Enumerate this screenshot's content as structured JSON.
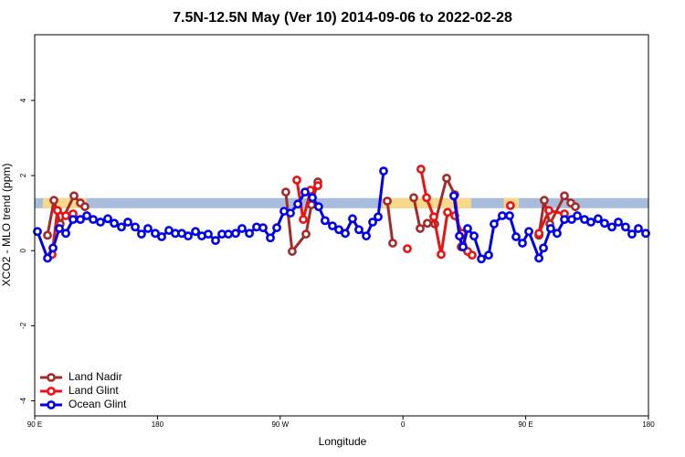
{
  "chart_data": {
    "type": "line",
    "title": "7.5N-12.5N May (Ver 10)   2014-09-06 to 2022-02-28",
    "x_label": "Longitude",
    "y_label": "XCO2 - MLO trend (ppm)",
    "xlim": [
      90,
      540
    ],
    "ylim": [
      -4.4,
      5.75
    ],
    "xticks": [
      {
        "value": 90,
        "label": "90 E"
      },
      {
        "value": 180,
        "label": "180"
      },
      {
        "value": 270,
        "label": "90 W"
      },
      {
        "value": 360,
        "label": "0"
      },
      {
        "value": 450,
        "label": "90 E"
      },
      {
        "value": 540,
        "label": "180"
      }
    ],
    "yticks": [
      -4,
      -2,
      0,
      2,
      4
    ],
    "band": [
      1.13,
      1.4
    ],
    "band_color": "#a7bddb",
    "band_highlights": [
      [
        96,
        128
      ],
      [
        345,
        410
      ],
      [
        434,
        445
      ]
    ],
    "highlight_color": "#f7d98c",
    "legend": "bottom-left",
    "series": [
      {
        "name": "Land Nadir",
        "color": "#a52a2a",
        "x": [
          99.4,
          104.1,
          108.7,
          118.8,
          123.5,
          126.8,
          null,
          274.1,
          278.8,
          288.9,
          292.9,
          297.6,
          null,
          348.5,
          352.5,
          null,
          367.9,
          372.6,
          377.9,
          383.3,
          392.0,
          398.0,
          402.7,
          null,
          459.7,
          463.6,
          467.7,
          478.4,
          483.1,
          486.4
        ],
        "values": [
          0.41,
          1.34,
          0.71,
          1.46,
          1.27,
          1.17,
          null,
          1.56,
          -0.02,
          0.44,
          1.22,
          1.83,
          null,
          1.32,
          0.2,
          null,
          1.41,
          0.59,
          0.73,
          0.71,
          1.93,
          1.49,
          0.1,
          null,
          0.41,
          1.34,
          0.71,
          1.46,
          1.27,
          1.17
        ]
      },
      {
        "name": "Land Glint",
        "color": "#ee1111",
        "x": [
          102.7,
          106.7,
          112.8,
          118.1,
          123.5,
          null,
          282.2,
          286.9,
          292.2,
          297.6,
          null,
          363.2,
          null,
          373.2,
          377.3,
          382.6,
          388.0,
          392.7,
          398.0,
          403.4,
          407.4,
          410.7,
          null,
          438.8,
          null,
          459.7,
          467.0,
          478.4
        ],
        "values": [
          -0.1,
          1.07,
          0.93,
          0.98,
          0.83,
          null,
          1.88,
          0.83,
          1.61,
          1.73,
          null,
          0.05,
          null,
          2.17,
          1.41,
          0.9,
          -0.1,
          1.02,
          0.93,
          0.46,
          -0.02,
          -0.12,
          null,
          1.2,
          null,
          0.46,
          1.07,
          0.98
        ]
      },
      {
        "name": "Ocean Glint",
        "color": "#0000ee",
        "x": [
          92.0,
          99.4,
          103.4,
          108.1,
          112.8,
          118.1,
          123.5,
          128.2,
          132.9,
          138.2,
          143.6,
          148.3,
          153.6,
          158.3,
          163.7,
          168.3,
          173.0,
          178.4,
          183.1,
          188.4,
          193.1,
          197.8,
          202.5,
          207.9,
          212.5,
          217.2,
          222.6,
          227.3,
          232.0,
          237.3,
          242.0,
          247.4,
          252.7,
          257.4,
          262.8,
          267.5,
          272.8,
          277.5,
          282.9,
          288.2,
          293.6,
          298.2,
          302.9,
          308.3,
          313.0,
          317.7,
          323.0,
          327.7,
          333.1,
          337.8,
          341.8,
          345.8,
          null,
          397.3,
          401.4,
          404.0,
          407.4,
          412.1,
          417.5,
          422.8,
          426.8,
          432.8,
          438.2,
          442.9,
          447.6,
          452.3,
          459.7,
          463.0,
          468.3,
          473.0,
          478.4,
          483.7,
          487.8,
          493.1,
          497.8,
          503.1,
          507.8,
          513.2,
          517.9,
          523.2,
          527.9,
          532.6,
          538.0
        ],
        "values": [
          0.51,
          -0.2,
          0.07,
          0.59,
          0.46,
          0.83,
          0.83,
          0.93,
          0.83,
          0.76,
          0.85,
          0.73,
          0.63,
          0.76,
          0.63,
          0.44,
          0.59,
          0.46,
          0.37,
          0.54,
          0.46,
          0.46,
          0.39,
          0.51,
          0.39,
          0.44,
          0.27,
          0.44,
          0.44,
          0.46,
          0.59,
          0.46,
          0.63,
          0.61,
          0.34,
          0.61,
          1.05,
          1.0,
          1.24,
          1.56,
          1.41,
          1.17,
          0.8,
          0.66,
          0.56,
          0.46,
          0.85,
          0.56,
          0.39,
          0.76,
          0.9,
          2.12,
          null,
          1.46,
          0.39,
          0.1,
          0.59,
          0.39,
          -0.22,
          -0.12,
          0.71,
          0.93,
          0.93,
          0.37,
          0.2,
          0.51,
          -0.2,
          0.07,
          0.59,
          0.46,
          0.83,
          0.83,
          0.93,
          0.83,
          0.76,
          0.85,
          0.73,
          0.63,
          0.76,
          0.63,
          0.44,
          0.59,
          0.46
        ]
      }
    ]
  }
}
